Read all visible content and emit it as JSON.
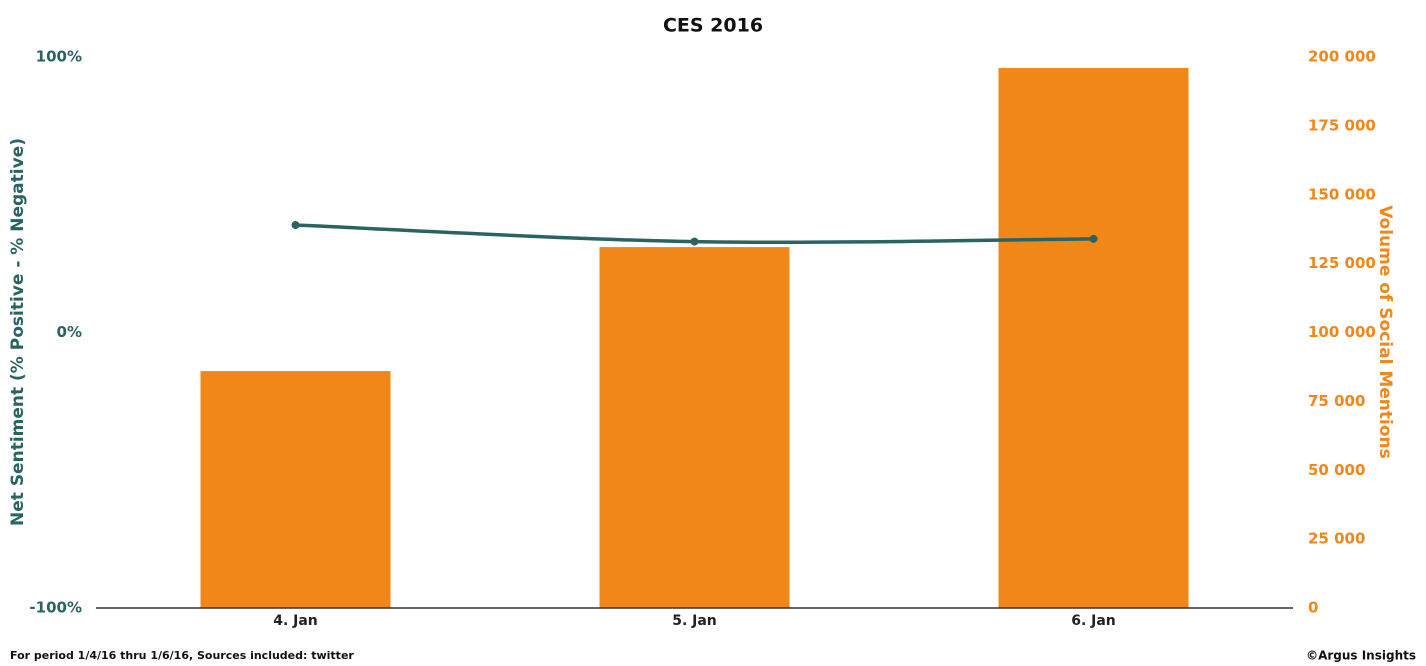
{
  "chart_data": {
    "type": "bar",
    "title": "CES 2016",
    "ylabel": "Net Sentiment (% Positive - % Negative)",
    "y2label": "Volume of Social Mentions",
    "categories": [
      "4. Jan",
      "5. Jan",
      "6. Jan"
    ],
    "series": [
      {
        "type": "bar",
        "axis": "y2",
        "color": "#f18719",
        "values": [
          86000,
          131000,
          196000
        ]
      },
      {
        "type": "line",
        "axis": "y",
        "color": "#2a6462",
        "values": [
          39,
          33,
          34
        ]
      }
    ],
    "ylim": [
      -100,
      100
    ],
    "yticks": [
      {
        "value": -100,
        "label": "-100%"
      },
      {
        "value": 0,
        "label": "0%"
      },
      {
        "value": 100,
        "label": "100%"
      }
    ],
    "y2lim": [
      0,
      200000
    ],
    "y2ticks": [
      0,
      {
        "value": 25000,
        "label": "25 000"
      },
      {
        "value": 50000,
        "label": "50 000"
      },
      {
        "value": 75000,
        "label": "75 000"
      },
      {
        "value": 100000,
        "label": "100 000"
      },
      {
        "value": 125000,
        "label": "125 000"
      },
      {
        "value": 150000,
        "label": "150 000"
      },
      {
        "value": 175000,
        "label": "175 000"
      },
      {
        "value": 200000,
        "label": "200 000"
      }
    ],
    "grid": false,
    "footnote": "For period 1/4/16 thru 1/6/16, Sources included: twitter",
    "credit": "©Argus Insights"
  }
}
